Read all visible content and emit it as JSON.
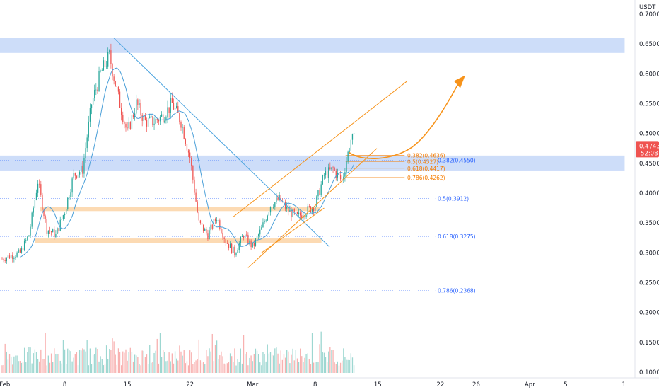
{
  "currency": "USDT",
  "colors": {
    "up": "#26a69a",
    "down": "#ef5350",
    "ma": "#4a9fd8",
    "trendline": "#4aa3df",
    "channel": "#f7931a",
    "zone_blue": "#bcd2f7",
    "zone_orange": "#fbd3a6",
    "price_label": "#ef5350",
    "fib_blue": "#2962ff",
    "fib_orange": "#f57c00"
  },
  "current_price": {
    "value": "0.4743",
    "countdown": "52:08",
    "y": 0.4743
  },
  "chart_data": {
    "type": "candlestick",
    "ylim": [
      0.1,
      0.7
    ],
    "y_ticks": [
      "0.7000",
      "0.6500",
      "0.6000",
      "0.5500",
      "0.5000",
      "0.4500",
      "0.4000",
      "0.3500",
      "0.3000",
      "0.2500",
      "0.2000",
      "0.1500",
      "0.1000"
    ],
    "x_ticks": [
      {
        "label": "Feb",
        "day": -0.3
      },
      {
        "label": "8",
        "day": 7
      },
      {
        "label": "15",
        "day": 14
      },
      {
        "label": "22",
        "day": 21
      },
      {
        "label": "Mar",
        "day": 28
      },
      {
        "label": "8",
        "day": 35
      },
      {
        "label": "15",
        "day": 42
      },
      {
        "label": "22",
        "day": 49
      },
      {
        "label": "26",
        "day": 53
      },
      {
        "label": "Apr",
        "day": 59
      },
      {
        "label": "5",
        "day": 63
      },
      {
        "label": "1",
        "day": 69.5
      }
    ],
    "candle_keypoints": [
      [
        0,
        0.29
      ],
      [
        2,
        0.3
      ],
      [
        3,
        0.33
      ],
      [
        4,
        0.42
      ],
      [
        5,
        0.34
      ],
      [
        6,
        0.33
      ],
      [
        7,
        0.37
      ],
      [
        8,
        0.43
      ],
      [
        9,
        0.44
      ],
      [
        10,
        0.55
      ],
      [
        11,
        0.6
      ],
      [
        12,
        0.63
      ],
      [
        13,
        0.56
      ],
      [
        14,
        0.5
      ],
      [
        15,
        0.55
      ],
      [
        16,
        0.52
      ],
      [
        17,
        0.52
      ],
      [
        18,
        0.53
      ],
      [
        19,
        0.55
      ],
      [
        20,
        0.52
      ],
      [
        21,
        0.46
      ],
      [
        22,
        0.35
      ],
      [
        23,
        0.33
      ],
      [
        24,
        0.36
      ],
      [
        25,
        0.32
      ],
      [
        26,
        0.3
      ],
      [
        27,
        0.33
      ],
      [
        28,
        0.31
      ],
      [
        29,
        0.34
      ],
      [
        30,
        0.38
      ],
      [
        31,
        0.39
      ],
      [
        32,
        0.37
      ],
      [
        33,
        0.36
      ],
      [
        34,
        0.37
      ],
      [
        35,
        0.38
      ],
      [
        36,
        0.43
      ],
      [
        37,
        0.44
      ],
      [
        38,
        0.42
      ],
      [
        39,
        0.49
      ]
    ],
    "volume_ylim": [
      0,
      1
    ],
    "zones": [
      {
        "name": "upper-resistance-zone",
        "color": "blue",
        "y0": 0.635,
        "y1": 0.66,
        "x0": -0.5,
        "x1": 69.6
      },
      {
        "name": "support-zone",
        "color": "blue",
        "y0": 0.438,
        "y1": 0.463,
        "x0": -0.5,
        "x1": 69.6
      },
      {
        "name": "orange-zone-upper",
        "color": "orange",
        "y0": 0.37,
        "y1": 0.377,
        "x0": 4.2,
        "x1": 35.5
      },
      {
        "name": "orange-zone-lower",
        "color": "orange",
        "y0": 0.317,
        "y1": 0.324,
        "x0": 3.7,
        "x1": 35.7
      }
    ],
    "trendline": {
      "x0": 12.5,
      "y0": 0.66,
      "x1": 36.6,
      "y1": 0.31
    },
    "channel": {
      "lower": {
        "x0": 27.5,
        "y0": 0.275,
        "x1": 41.9,
        "y1": 0.475
      },
      "upper": {
        "x0": 25.8,
        "y0": 0.36,
        "x1": 45.3,
        "y1": 0.588
      },
      "inner": {
        "x0": 29.0,
        "y0": 0.3,
        "x1": 36.0,
        "y1": 0.375
      }
    },
    "projection_arrow": {
      "x0": 38.8,
      "y0": 0.48,
      "x1": 51.3,
      "y1": 0.595
    },
    "fib_small": [
      {
        "label": "0.382(0.4636)",
        "y": 0.4636
      },
      {
        "label": "0.5(0.4527)",
        "y": 0.4527
      },
      {
        "label": "0.618(0.4417)",
        "y": 0.4417
      },
      {
        "label": "0.786(0.4262)",
        "y": 0.4262
      }
    ],
    "fib_large": [
      {
        "label": "0.382(0.4550)",
        "y": 0.455
      },
      {
        "label": "0.5(0.3912)",
        "y": 0.3912
      },
      {
        "label": "0.618(0.3275)",
        "y": 0.3275
      },
      {
        "label": "0.786(0.2368)",
        "y": 0.2368
      }
    ]
  }
}
